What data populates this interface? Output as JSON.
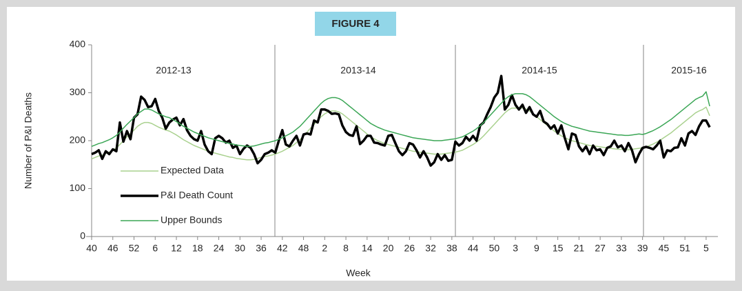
{
  "chart_data": {
    "type": "line",
    "title": "FIGURE 4",
    "x_label": "Week",
    "y_label": "Number of P&I Deaths",
    "annotations": [
      "2012-13",
      "2013-14",
      "2014-15",
      "2015-16"
    ],
    "legend": "lower left",
    "grid": false,
    "ylim": [
      0,
      400
    ],
    "yticks": [
      0,
      100,
      200,
      300,
      400
    ],
    "categories": [
      "40",
      null,
      null,
      null,
      null,
      null,
      "46",
      null,
      null,
      null,
      null,
      null,
      "52",
      null,
      null,
      null,
      null,
      null,
      "6",
      null,
      null,
      null,
      null,
      null,
      "12",
      null,
      null,
      null,
      null,
      null,
      "18",
      null,
      null,
      null,
      null,
      null,
      "24",
      null,
      null,
      null,
      null,
      null,
      "30",
      null,
      null,
      null,
      null,
      null,
      "36",
      null,
      null,
      null,
      null,
      null,
      "42",
      null,
      null,
      null,
      null,
      null,
      "48",
      null,
      null,
      null,
      null,
      null,
      "2",
      null,
      null,
      null,
      null,
      null,
      "8",
      null,
      null,
      null,
      null,
      null,
      "14",
      null,
      null,
      null,
      null,
      null,
      "20",
      null,
      null,
      null,
      null,
      null,
      "26",
      null,
      null,
      null,
      null,
      null,
      "32",
      null,
      null,
      null,
      null,
      null,
      "38",
      null,
      null,
      null,
      null,
      null,
      "44",
      null,
      null,
      null,
      null,
      null,
      "50",
      null,
      null,
      null,
      null,
      null,
      "3",
      null,
      null,
      null,
      null,
      null,
      "9",
      null,
      null,
      null,
      null,
      null,
      "15",
      null,
      null,
      null,
      null,
      null,
      "21",
      null,
      null,
      null,
      null,
      null,
      "27",
      null,
      null,
      null,
      null,
      null,
      "33",
      null,
      null,
      null,
      null,
      null,
      "39",
      null,
      null,
      null,
      null,
      null,
      "45",
      null,
      null,
      null,
      null,
      null,
      "51",
      null,
      null,
      null,
      null,
      null,
      "5",
      null
    ],
    "series": [
      {
        "name": "Expected Data",
        "color": "#a9d18e",
        "width": 1.5,
        "values": [
          162,
          165,
          168,
          170,
          173,
          176,
          180,
          185,
          192,
          200,
          208,
          215,
          222,
          230,
          235,
          238,
          238,
          236,
          232,
          228,
          225,
          222,
          220,
          216,
          212,
          207,
          202,
          198,
          194,
          190,
          187,
          184,
          181,
          178,
          176,
          174,
          172,
          170,
          168,
          166,
          165,
          163,
          162,
          161,
          160,
          160,
          161,
          163,
          165,
          167,
          168,
          170,
          172,
          175,
          178,
          182,
          186,
          190,
          196,
          202,
          210,
          218,
          226,
          234,
          242,
          250,
          256,
          260,
          262,
          262,
          260,
          256,
          250,
          244,
          238,
          232,
          226,
          220,
          214,
          208,
          204,
          200,
          197,
          194,
          192,
          190,
          188,
          186,
          184,
          182,
          180,
          178,
          177,
          176,
          175,
          174,
          173,
          172,
          172,
          172,
          173,
          174,
          175,
          176,
          178,
          180,
          184,
          188,
          192,
          197,
          203,
          210,
          218,
          226,
          234,
          242,
          250,
          258,
          264,
          268,
          268,
          268,
          268,
          266,
          262,
          256,
          250,
          244,
          238,
          232,
          226,
          220,
          215,
          210,
          206,
          203,
          200,
          198,
          196,
          194,
          192,
          190,
          189,
          188,
          187,
          186,
          185,
          184,
          183,
          182,
          182,
          181,
          181,
          182,
          183,
          184,
          185,
          187,
          190,
          193,
          197,
          201,
          206,
          211,
          216,
          222,
          228,
          234,
          240,
          246,
          252,
          258,
          262,
          265,
          270,
          252
        ]
      },
      {
        "name": "P&I Death Count",
        "color": "#000000",
        "width": 3.5,
        "values": [
          172,
          175,
          180,
          162,
          178,
          172,
          182,
          178,
          238,
          198,
          220,
          203,
          248,
          255,
          292,
          285,
          270,
          272,
          287,
          262,
          248,
          225,
          238,
          244,
          248,
          232,
          245,
          222,
          210,
          203,
          200,
          220,
          192,
          178,
          172,
          205,
          210,
          205,
          196,
          200,
          185,
          190,
          172,
          183,
          190,
          185,
          172,
          153,
          160,
          172,
          175,
          180,
          175,
          200,
          222,
          192,
          188,
          200,
          210,
          190,
          213,
          215,
          213,
          242,
          238,
          265,
          265,
          262,
          256,
          257,
          255,
          232,
          218,
          212,
          210,
          230,
          193,
          200,
          210,
          210,
          196,
          195,
          192,
          190,
          210,
          212,
          195,
          178,
          170,
          178,
          195,
          192,
          180,
          165,
          178,
          165,
          148,
          155,
          172,
          160,
          170,
          158,
          160,
          198,
          190,
          195,
          208,
          200,
          210,
          200,
          232,
          238,
          255,
          270,
          290,
          300,
          335,
          265,
          275,
          295,
          275,
          265,
          275,
          258,
          270,
          255,
          250,
          262,
          240,
          235,
          225,
          232,
          215,
          232,
          205,
          182,
          215,
          212,
          188,
          178,
          188,
          172,
          190,
          180,
          182,
          170,
          185,
          188,
          200,
          186,
          190,
          178,
          195,
          180,
          155,
          172,
          185,
          187,
          185,
          182,
          190,
          200,
          165,
          180,
          178,
          185,
          186,
          205,
          190,
          215,
          220,
          212,
          230,
          242,
          242,
          228
        ]
      },
      {
        "name": "Upper Bounds",
        "color": "#3aa655",
        "width": 1.5,
        "values": [
          188,
          191,
          194,
          196,
          199,
          202,
          206,
          211,
          218,
          226,
          234,
          241,
          248,
          256,
          261,
          266,
          266,
          264,
          260,
          256,
          253,
          250,
          248,
          244,
          240,
          235,
          230,
          226,
          222,
          218,
          215,
          212,
          209,
          206,
          204,
          202,
          200,
          198,
          196,
          194,
          193,
          191,
          190,
          189,
          188,
          188,
          189,
          191,
          193,
          195,
          196,
          198,
          200,
          203,
          206,
          210,
          214,
          218,
          224,
          230,
          238,
          246,
          254,
          262,
          270,
          278,
          284,
          288,
          290,
          290,
          288,
          284,
          278,
          272,
          266,
          260,
          254,
          248,
          242,
          236,
          232,
          228,
          225,
          222,
          220,
          218,
          216,
          214,
          212,
          210,
          208,
          206,
          205,
          204,
          203,
          202,
          201,
          200,
          200,
          200,
          201,
          202,
          203,
          204,
          206,
          208,
          212,
          216,
          220,
          225,
          231,
          238,
          246,
          254,
          262,
          270,
          278,
          286,
          292,
          296,
          298,
          298,
          298,
          296,
          292,
          286,
          280,
          274,
          268,
          262,
          256,
          250,
          245,
          240,
          236,
          233,
          230,
          228,
          226,
          224,
          222,
          220,
          219,
          218,
          217,
          216,
          215,
          214,
          213,
          212,
          212,
          211,
          211,
          212,
          213,
          214,
          213,
          215,
          218,
          221,
          225,
          229,
          234,
          239,
          244,
          250,
          256,
          262,
          268,
          274,
          280,
          286,
          290,
          293,
          302,
          272
        ]
      }
    ]
  }
}
